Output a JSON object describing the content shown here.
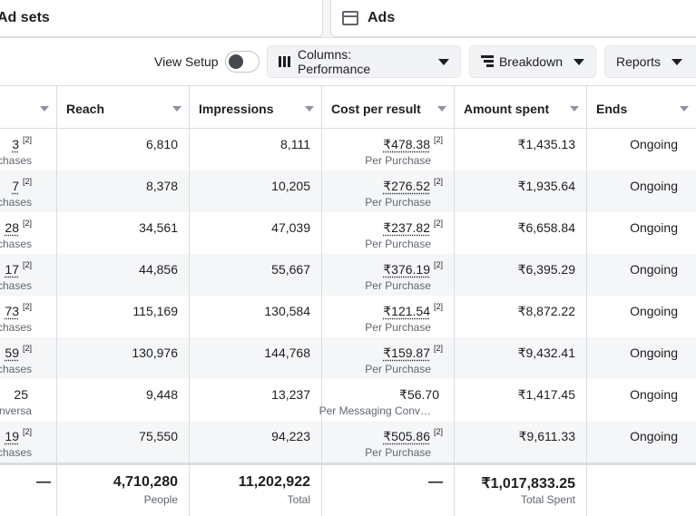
{
  "tabs": {
    "adsets": "Ad sets",
    "ads": "Ads"
  },
  "toolbar": {
    "view_setup": "View Setup",
    "view_setup_on": false,
    "columns": "Columns: Performance",
    "breakdown": "Breakdown",
    "reports": "Reports"
  },
  "headers": [
    "Reach",
    "Impressions",
    "Cost per result",
    "Amount spent",
    "Ends"
  ],
  "rows": [
    {
      "results": "3",
      "results_sup": "[2]",
      "results_sub": "chases",
      "reach": "6,810",
      "impressions": "8,111",
      "cost": "₹478.38",
      "cost_sup": "[2]",
      "cost_sub": "Per Purchase",
      "spent": "₹1,435.13",
      "ends": "Ongoing"
    },
    {
      "results": "7",
      "results_sup": "[2]",
      "results_sub": "chases",
      "reach": "8,378",
      "impressions": "10,205",
      "cost": "₹276.52",
      "cost_sup": "[2]",
      "cost_sub": "Per Purchase",
      "spent": "₹1,935.64",
      "ends": "Ongoing"
    },
    {
      "results": "28",
      "results_sup": "[2]",
      "results_sub": "chases",
      "reach": "34,561",
      "impressions": "47,039",
      "cost": "₹237.82",
      "cost_sup": "[2]",
      "cost_sub": "Per Purchase",
      "spent": "₹6,658.84",
      "ends": "Ongoing"
    },
    {
      "results": "17",
      "results_sup": "[2]",
      "results_sub": "chases",
      "reach": "44,856",
      "impressions": "55,667",
      "cost": "₹376.19",
      "cost_sup": "[2]",
      "cost_sub": "Per Purchase",
      "spent": "₹6,395.29",
      "ends": "Ongoing"
    },
    {
      "results": "73",
      "results_sup": "[2]",
      "results_sub": "chases",
      "reach": "115,169",
      "impressions": "130,584",
      "cost": "₹121.54",
      "cost_sup": "[2]",
      "cost_sub": "Per Purchase",
      "spent": "₹8,872.22",
      "ends": "Ongoing"
    },
    {
      "results": "59",
      "results_sup": "[2]",
      "results_sub": "chases",
      "reach": "130,976",
      "impressions": "144,768",
      "cost": "₹159.87",
      "cost_sup": "[2]",
      "cost_sub": "Per Purchase",
      "spent": "₹9,432.41",
      "ends": "Ongoing"
    },
    {
      "results": "25",
      "results_sup": "",
      "results_sub": "onversa",
      "reach": "9,448",
      "impressions": "13,237",
      "cost": "₹56.70",
      "cost_sup": "",
      "cost_sub": "Per Messaging Conv…",
      "spent": "₹1,417.45",
      "ends": "Ongoing"
    },
    {
      "results": "19",
      "results_sup": "[2]",
      "results_sub": "chases",
      "reach": "75,550",
      "impressions": "94,223",
      "cost": "₹505.86",
      "cost_sup": "[2]",
      "cost_sub": "Per Purchase",
      "spent": "₹9,611.33",
      "ends": "Ongoing"
    }
  ],
  "totals": {
    "results": "—",
    "reach": "4,710,280",
    "reach_sub": "People",
    "impressions": "11,202,922",
    "impressions_sub": "Total",
    "cost": "—",
    "spent": "₹1,017,833.25",
    "spent_sub": "Total Spent"
  }
}
